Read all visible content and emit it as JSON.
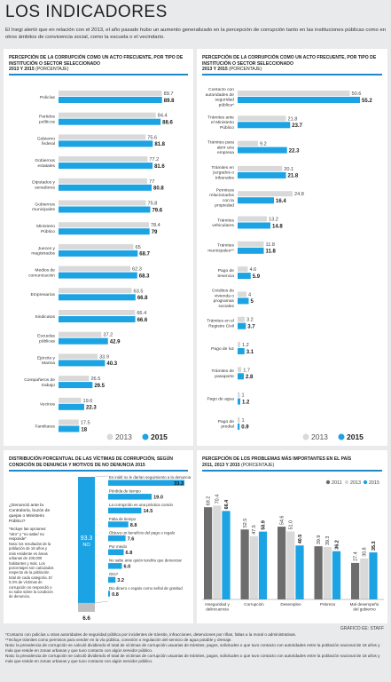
{
  "header": {
    "title": "LOS INDICADORES",
    "intro": "El Inegi alertó que en relación con el 2013, el año pasado hubo un aumento generalizado en la percepción de corrupción tanto en las instituciones públicas como en otros ámbitos de convivencia social, como la escuela o el vecindario."
  },
  "colors": {
    "y2013": "#d9d9d9",
    "y2015": "#1ba3e3",
    "accent": "#1e88c9",
    "y2011": "#6d6d6d",
    "dark": "#3a3a3a"
  },
  "chart_data": [
    {
      "type": "bar",
      "title": "PERCEPCIÓN DE LA CORRUPCIÓN COMO UN ACTO FRECUENTE, POR TIPO DE INSTITUCIÓN O SECTOR SELECCIONADO",
      "subtitle_years": "2013 Y 2015",
      "subtitle_unit": "(PORCENTAJE)",
      "orientation": "horizontal",
      "categories": [
        "Policías",
        "Partidos políticos",
        "Gobierno federal",
        "Gobiernos estatales",
        "Diputados y senadores",
        "Gobiernos municipales",
        "Ministerio Público",
        "Jueces y magistrados",
        "Medios de comunicación",
        "Empresarios",
        "Sindicatos",
        "Escuelas públicas",
        "Ejército y Marina",
        "Compañeros de trabajo",
        "Vecinos",
        "Familiares"
      ],
      "series": [
        {
          "name": "2013",
          "values": [
            89.7,
            84.4,
            75.6,
            77.2,
            77,
            75.8,
            78.4,
            65,
            62.3,
            63.5,
            66.4,
            37.2,
            33.9,
            26.5,
            19.6,
            17.5
          ]
        },
        {
          "name": "2015",
          "values": [
            89.8,
            88.6,
            81.8,
            81.6,
            80.8,
            79.6,
            79,
            68.7,
            68.3,
            66.8,
            66.6,
            42.9,
            40.3,
            29.5,
            22.3,
            18
          ]
        }
      ],
      "xlim": [
        0,
        100
      ],
      "legend": "bottom-right"
    },
    {
      "type": "bar",
      "title": "PERCEPCIÓN DE LA CORRUPCIÓN COMO UN ACTO FRECUENTE, POR TIPO DE INSTITUCIÓN O SECTOR SELECCIONADO",
      "subtitle_years": "2013 Y 2015",
      "subtitle_unit": "(PORCENTAJE)",
      "orientation": "horizontal",
      "categories": [
        "Contacto con autoridades de seguridad pública*",
        "Trámites ante el Ministerio Público",
        "Trámites para abrir una empresa",
        "Trámites en juzgados o tribunales",
        "Permisos relacionados con la propiedad",
        "Trámites vehiculares",
        "Trámites municipales**",
        "Pago de tenencia",
        "Créditos de vivienda o programas sociales",
        "Trámites en el Registro Civil",
        "Pago de luz",
        "Trámites de pasaporte",
        "Pago de agua",
        "Pago de predial"
      ],
      "series": [
        {
          "name": "2013",
          "values": [
            50.6,
            21.8,
            9.2,
            20.1,
            24.8,
            13.2,
            11.8,
            4.6,
            4,
            3.2,
            1.2,
            1.7,
            1,
            1
          ]
        },
        {
          "name": "2015",
          "values": [
            55.2,
            23.7,
            22.3,
            21.8,
            16.4,
            14.8,
            11.8,
            5.9,
            5,
            3.7,
            3.1,
            2.8,
            1.2,
            0.9
          ]
        }
      ],
      "xlim": [
        0,
        60
      ],
      "legend": "bottom-right"
    },
    {
      "type": "bar",
      "title": "DISTRIBUCIÓN PORCENTUAL DE LAS VÍCTIMAS DE CORRUPCIÓN, SEGÚN CONDICIÓN DE DENUNCIA Y MOTIVOS DE NO DENUNCIA",
      "subtitle_years": "2015",
      "orientation": "horizontal",
      "stack": {
        "no_label": "NO",
        "no_value": 93.3,
        "other_value": 6.6,
        "question": "¿Denunció ante la Contraloría, buzón de quejas o Ministerio Público?",
        "note_label": "*Incluye las opciones: \"otro\" y \"no sabe/ no responde\""
      },
      "categories": [
        "Es inútil no le darían seguimiento a la denuncia",
        "Pérdida de tiempo",
        "La corrupción es una práctica común",
        "Falta de tiempo",
        "Obtuvo un beneficio del pago o regalo",
        "Por miedo",
        "No sabe ante quién tendría que denunciar",
        "Otro*",
        "Dio dinero o regalo como señal de gratitud"
      ],
      "values": [
        33.3,
        19.0,
        14.5,
        8.8,
        7.6,
        6.8,
        6.0,
        3.2,
        0.8
      ],
      "value_labels": [
        "33.3",
        "19.0",
        "14.5",
        "8.8",
        "7.6",
        "6.8",
        "6.0",
        "3.2",
        "0.8"
      ],
      "note": "Nota: los resultados de la población de 18 años y más residente en áreas urbanas de 100,000 habitantes y más. Los porcentajes son calculados respecto de la población total de cada categoría. El 0.3% de víctimas de corrupción no respondió o no sabe sobre la condición de denuncia."
    },
    {
      "type": "bar",
      "title": "PERCEPCIÓN DE LOS PROBLEMAS MÁS IMPORTANTES EN EL PAÍS",
      "subtitle_years": "2011, 2013 Y 2015",
      "subtitle_unit": "(PORCENTAJE)",
      "categories": [
        "Inseguridad y delincuencia",
        "Corrupción",
        "Desempleo",
        "Pobreza",
        "Mal desempeño del gobierno"
      ],
      "series": [
        {
          "name": "2011",
          "values": [
            69.2,
            52.5,
            54.6,
            39.9,
            27.4
          ]
        },
        {
          "name": "2013",
          "values": [
            70.4,
            47.5,
            51.0,
            39.3,
            30.8
          ]
        },
        {
          "name": "2015",
          "values": [
            66.4,
            50.9,
            40.5,
            36.2,
            35.3
          ]
        }
      ],
      "ylim": [
        0,
        80
      ],
      "legend": "top-right"
    }
  ],
  "footer": {
    "note1": "*Contacto con policías u otras autoridades de seguridad pública por incidentes de tránsito, infracciones, detenciones por riñas, faltas a la moral o administrativas.",
    "note2": "**Incluye trámites como permisos para vender en la vía pública, conexión o regulación del servicio de agua potable y drenaje.",
    "note3": "Nota: la prevalencia de corrupción se calculó dividiendo el total de víctimas de corrupción usuarias de trámites, pagos, solicitudes o que tuvo contacto con autoridades entre la población nacional de 18 años y más que reside en zonas urbanas y que tuvo contacto con algún servidor público.",
    "note4": "Nota: la prevalencia de corrupción se calculó dividiendo el total de víctimas de corrupción usuarias de trámites, pagos, solicitudes o que tuvo contacto con autoridades entre la población nacional de 18 años y más que reside en zonas urbanas y que tuvo contacto con algún servidor público.",
    "credit": "GRÁFICO EE: STAFF"
  }
}
